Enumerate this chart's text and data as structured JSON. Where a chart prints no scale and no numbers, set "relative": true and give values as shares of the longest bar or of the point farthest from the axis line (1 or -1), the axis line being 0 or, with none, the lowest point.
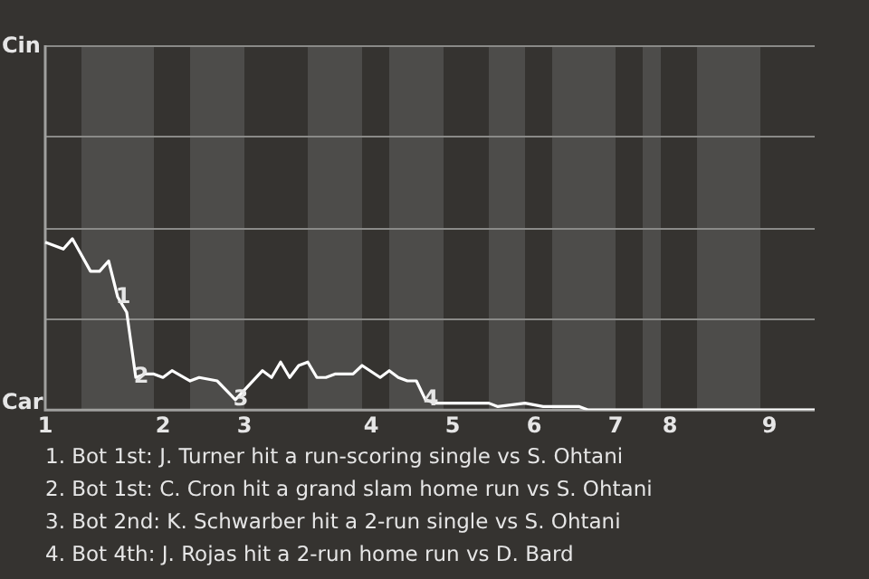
{
  "chart_data": {
    "type": "line",
    "relative": true,
    "categories": [
      "1",
      null,
      null,
      null,
      null,
      null,
      null,
      null,
      null,
      null,
      null,
      null,
      null,
      "2",
      null,
      null,
      null,
      null,
      null,
      null,
      null,
      null,
      "3",
      null,
      null,
      null,
      null,
      null,
      null,
      null,
      null,
      null,
      null,
      null,
      null,
      null,
      "4",
      null,
      null,
      null,
      null,
      null,
      null,
      null,
      null,
      "5",
      null,
      null,
      null,
      null,
      null,
      null,
      null,
      null,
      "6",
      null,
      null,
      null,
      null,
      null,
      null,
      null,
      null,
      "7",
      null,
      null,
      null,
      null,
      null,
      "8",
      null,
      null,
      null,
      null,
      null,
      null,
      null,
      null,
      null,
      null,
      "9",
      null,
      null,
      null,
      null,
      null
    ],
    "series": [
      {
        "color": "#ffffff",
        "values": [
          0.98,
          null,
          0.94,
          1,
          null,
          0.81,
          0.81,
          0.87,
          0.66,
          0.57,
          0.19,
          0.21,
          0.21,
          0.19,
          0.23,
          null,
          0.17,
          0.19,
          null,
          0.17,
          null,
          0.06,
          null,
          null,
          0.23,
          0.19,
          0.28,
          0.19,
          0.26,
          0.28,
          0.19,
          0.19,
          0.21,
          null,
          0.21,
          0.26,
          null,
          0.19,
          0.23,
          0.19,
          0.17,
          0.17,
          0.06,
          0.04,
          null,
          0.04,
          null,
          0.04,
          null,
          0.04,
          0.02,
          null,
          null,
          0.04,
          null,
          0.02,
          null,
          null,
          null,
          0.02,
          0,
          null,
          null,
          null,
          null,
          null,
          null,
          null,
          null,
          null,
          null,
          null,
          null,
          null,
          null,
          null,
          null,
          null,
          null,
          null,
          null,
          null,
          null,
          null,
          null,
          0
        ]
      }
    ],
    "legend": false,
    "marker": "none",
    "line_style": "solid",
    "annotations": [
      "Cin",
      "Car",
      {
        "text": "1",
        "y": 0.66
      },
      {
        "text": "2",
        "y": 0.19
      },
      {
        "text": "3",
        "y": 0.06
      },
      {
        "text": "4",
        "y": 0.06
      },
      "1. Bot 1st: J. Turner hit a run-scoring single vs S. Ohtani",
      "2. Bot 1st: C. Cron hit a grand slam home run vs S. Ohtani",
      "3. Bot 2nd: K. Schwarber hit a 2-run single vs S. Ohtani",
      "4. Bot 4th: J. Rojas hit a 2-run home run vs D. Bard"
    ]
  }
}
